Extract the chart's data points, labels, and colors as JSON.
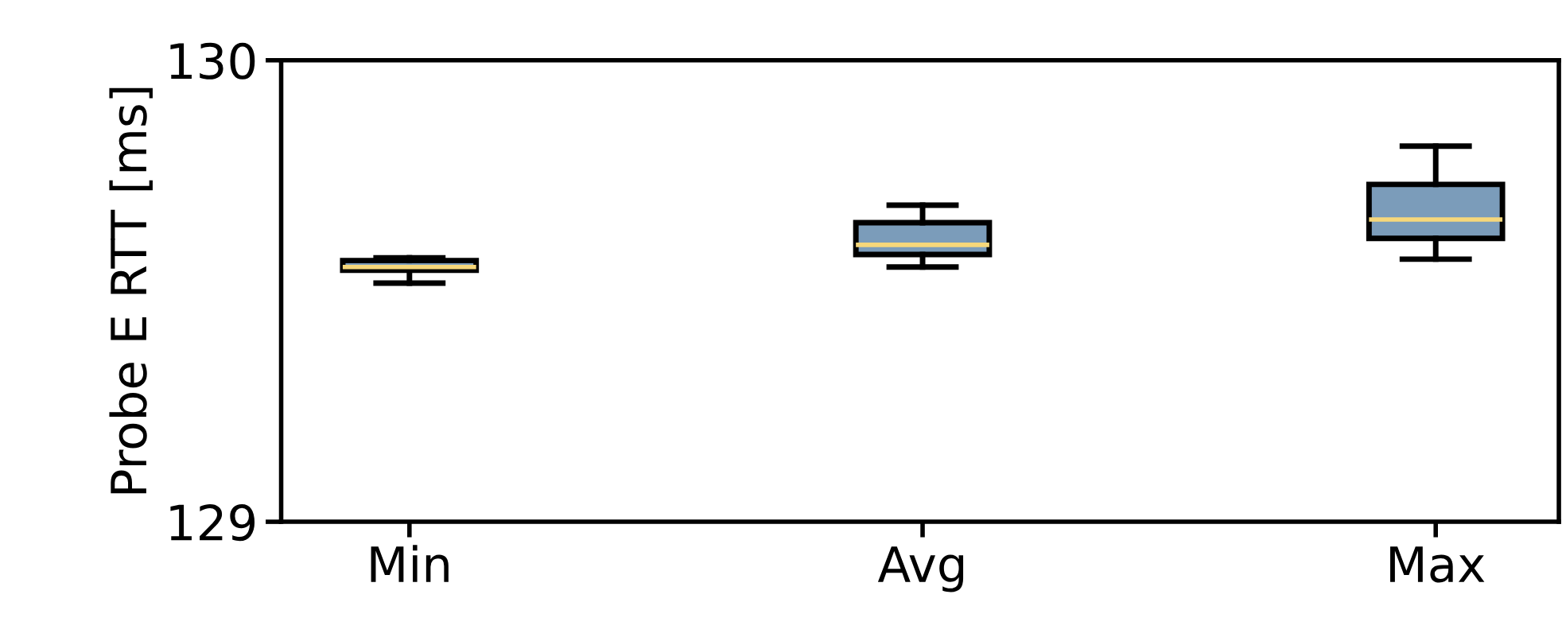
{
  "chart_data": {
    "type": "box",
    "ylabel": "Probe E RTT [ms]",
    "categories": [
      "Min",
      "Avg",
      "Max"
    ],
    "ylim": [
      129,
      130
    ],
    "yticks": [
      129,
      130
    ],
    "grid": false,
    "legend": false,
    "series": [
      {
        "color": "#7b9cba",
        "boxes": [
          {
            "low": 129.517,
            "q1": 129.545,
            "median": 129.552,
            "q3": 129.566,
            "high": 129.572
          },
          {
            "low": 129.552,
            "q1": 129.579,
            "median": 129.6,
            "q3": 129.648,
            "high": 129.686
          },
          {
            "low": 129.569,
            "q1": 129.614,
            "median": 129.655,
            "q3": 129.731,
            "high": 129.814
          }
        ]
      }
    ]
  }
}
